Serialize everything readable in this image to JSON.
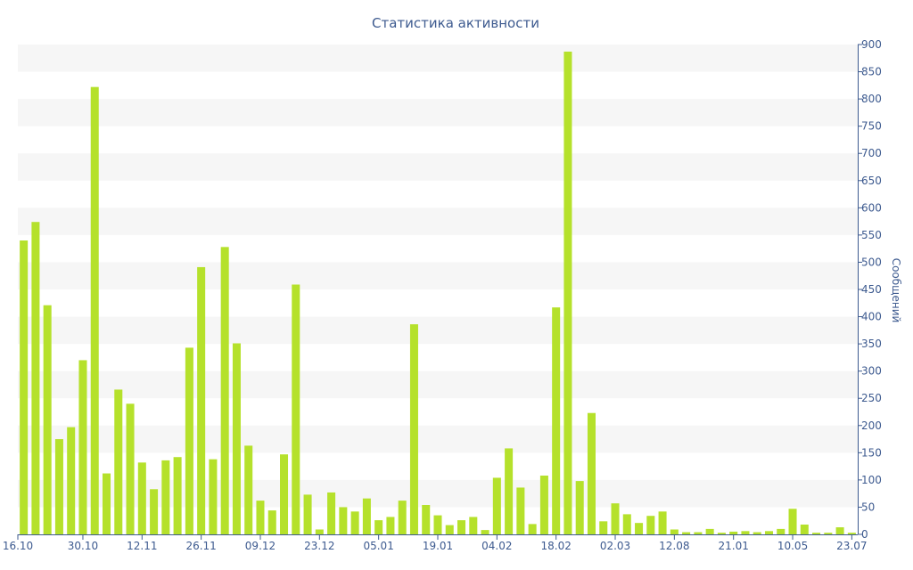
{
  "chart_data": {
    "type": "bar",
    "title": "Статистика активности",
    "xlabel": "",
    "ylabel": "Сообщений",
    "ylim": [
      0,
      900
    ],
    "yticks": [
      0,
      50,
      100,
      150,
      200,
      250,
      300,
      350,
      400,
      450,
      500,
      550,
      600,
      650,
      700,
      750,
      800,
      850,
      900
    ],
    "y_axis_side": "right",
    "grid": "alternating horizontal bands",
    "legend": "none",
    "x_tick_labels": [
      {
        "index": 0,
        "label": "16.10"
      },
      {
        "index": 5,
        "label": "30.10"
      },
      {
        "index": 10,
        "label": "12.11"
      },
      {
        "index": 15,
        "label": "26.11"
      },
      {
        "index": 20,
        "label": "09.12"
      },
      {
        "index": 25,
        "label": "23.12"
      },
      {
        "index": 30,
        "label": "05.01"
      },
      {
        "index": 35,
        "label": "19.01"
      },
      {
        "index": 40,
        "label": "04.02"
      },
      {
        "index": 45,
        "label": "18.02"
      },
      {
        "index": 50,
        "label": "02.03"
      },
      {
        "index": 55,
        "label": "12.08"
      },
      {
        "index": 60,
        "label": "21.01"
      },
      {
        "index": 65,
        "label": "10.05"
      },
      {
        "index": 70,
        "label": "23.07"
      }
    ],
    "values": [
      540,
      574,
      421,
      175,
      197,
      320,
      822,
      112,
      266,
      240,
      132,
      83,
      136,
      142,
      343,
      491,
      138,
      528,
      351,
      163,
      62,
      44,
      147,
      459,
      73,
      9,
      77,
      50,
      42,
      66,
      26,
      32,
      62,
      386,
      54,
      35,
      17,
      26,
      32,
      8,
      104,
      158,
      86,
      19,
      108,
      417,
      887,
      98,
      223,
      24,
      57,
      37,
      21,
      34,
      42,
      9,
      4,
      4,
      10,
      3,
      5,
      6,
      4,
      6,
      10,
      47,
      18,
      3,
      3,
      13,
      3
    ],
    "colors": {
      "bar": "#b5e12b",
      "text": "#3d5a8f",
      "band": "#f6f6f6",
      "axis": "#3d5a8f"
    }
  }
}
